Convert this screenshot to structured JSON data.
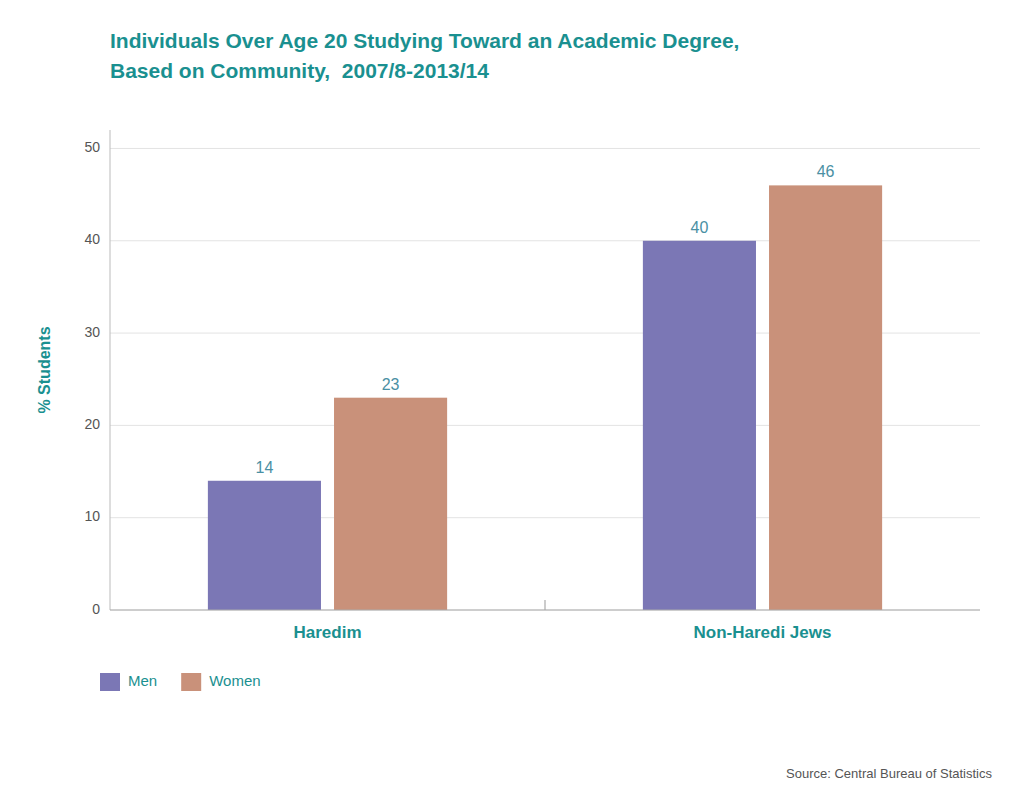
{
  "chart_data": {
    "type": "bar",
    "title": "Individuals Over Age 20 Studying Toward an Academic Degree,",
    "subtitle": "Based on Community,  2007/8-2013/14",
    "categories": [
      "Haredim",
      "Non-Haredi Jews"
    ],
    "series": [
      {
        "name": "Men",
        "color": "#7b77b5",
        "values": [
          14,
          40
        ]
      },
      {
        "name": "Women",
        "color": "#c9917a",
        "values": [
          23,
          46
        ]
      }
    ],
    "y_label": "% Students",
    "ylim": [
      0,
      52
    ],
    "yticks": [
      0,
      10,
      20,
      30,
      40,
      50
    ],
    "grid": true,
    "legend": "bottom",
    "data_labels": true,
    "annotations": [
      "Source: Central Bureau of Statistics"
    ]
  }
}
